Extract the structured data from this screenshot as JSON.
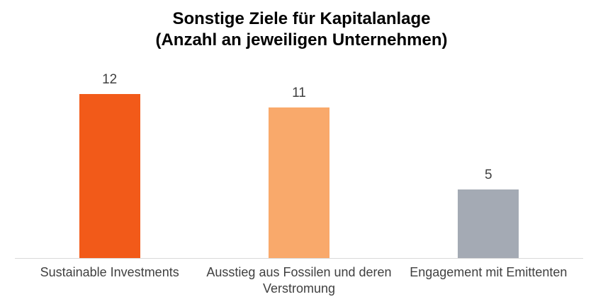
{
  "title": {
    "line1": "Sonstige Ziele für Kapitalanlage",
    "line2": "(Anzahl an jeweiligen Unternehmen)"
  },
  "chart_data": {
    "type": "bar",
    "title": "Sonstige Ziele für Kapitalanlage (Anzahl an jeweiligen Unternehmen)",
    "categories": [
      "Sustainable Investments",
      "Ausstieg aus Fossilen und deren Verstromung",
      "Engagement mit Emittenten"
    ],
    "values": [
      12,
      11,
      5
    ],
    "value_labels": [
      "12",
      "11",
      "5"
    ],
    "bar_colors": [
      "#F25A19",
      "#F9A96B",
      "#A4AAB4"
    ],
    "xlabel": "",
    "ylabel": "",
    "ylim": [
      0,
      12
    ],
    "grid": false,
    "legend": false,
    "value_labels_shown": true,
    "axis_line_color": "#D9D9D9",
    "text_color": "#404040",
    "title_color": "#000000",
    "background_color": "#FFFFFF"
  }
}
